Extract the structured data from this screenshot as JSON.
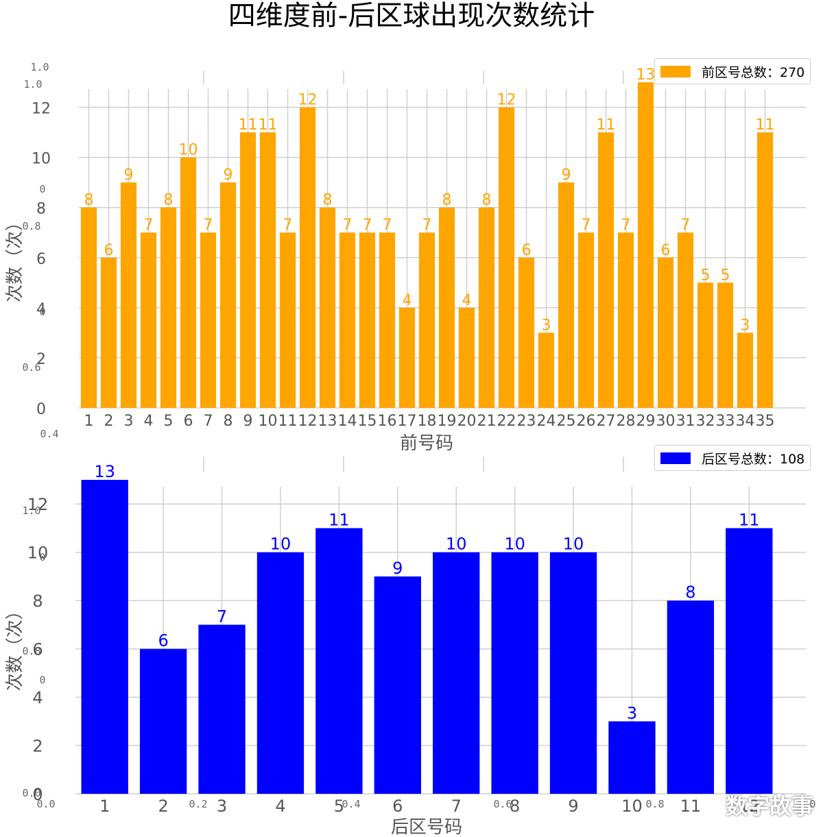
{
  "title": "四维度前-后区球出现次数统计",
  "colors": {
    "front": "#FFA500",
    "back": "#0000FF",
    "grid": "#cfcfcf",
    "tick": "#555555"
  },
  "ghost_ticks": {
    "top_y": [
      "1.0",
      "1.0",
      "0",
      "0.8",
      "0",
      "0.6",
      "0.4"
    ],
    "bottom_y": [
      "1.0",
      "0",
      "0.8",
      "0",
      "0.0"
    ],
    "bottom_x": [
      "0.0",
      "0.2",
      "0.4",
      "0.6",
      "0.8",
      "1.0"
    ]
  },
  "watermark": "数字故事",
  "chart_data": [
    {
      "type": "bar",
      "categories": [
        "1",
        "2",
        "3",
        "4",
        "5",
        "6",
        "7",
        "8",
        "9",
        "10",
        "11",
        "12",
        "13",
        "14",
        "15",
        "16",
        "17",
        "18",
        "19",
        "20",
        "21",
        "22",
        "23",
        "24",
        "25",
        "26",
        "27",
        "28",
        "29",
        "30",
        "31",
        "32",
        "33",
        "34",
        "35"
      ],
      "values": [
        8,
        6,
        9,
        7,
        8,
        10,
        7,
        9,
        11,
        11,
        7,
        12,
        8,
        7,
        7,
        7,
        4,
        7,
        8,
        4,
        8,
        12,
        6,
        3,
        9,
        7,
        11,
        7,
        13,
        6,
        7,
        5,
        5,
        3,
        11
      ],
      "legend": "前区号总数：270",
      "xlabel": "前号码",
      "ylabel": "次数（次）",
      "yticks": [
        0,
        2,
        4,
        6,
        8,
        10,
        12
      ],
      "ylim": [
        0,
        13
      ],
      "color": "#FFA500",
      "legend_position": "top-right",
      "grid": true
    },
    {
      "type": "bar",
      "categories": [
        "1",
        "2",
        "3",
        "4",
        "5",
        "6",
        "7",
        "8",
        "9",
        "10",
        "11",
        "12"
      ],
      "values": [
        13,
        6,
        7,
        10,
        11,
        9,
        10,
        10,
        10,
        3,
        8,
        11
      ],
      "legend": "后区号总数：108",
      "xlabel": "后区号码",
      "ylabel": "次数（次）",
      "yticks": [
        0,
        2,
        4,
        6,
        8,
        10,
        12
      ],
      "ylim": [
        0,
        13
      ],
      "color": "#0000FF",
      "legend_position": "top-right",
      "grid": true
    }
  ]
}
